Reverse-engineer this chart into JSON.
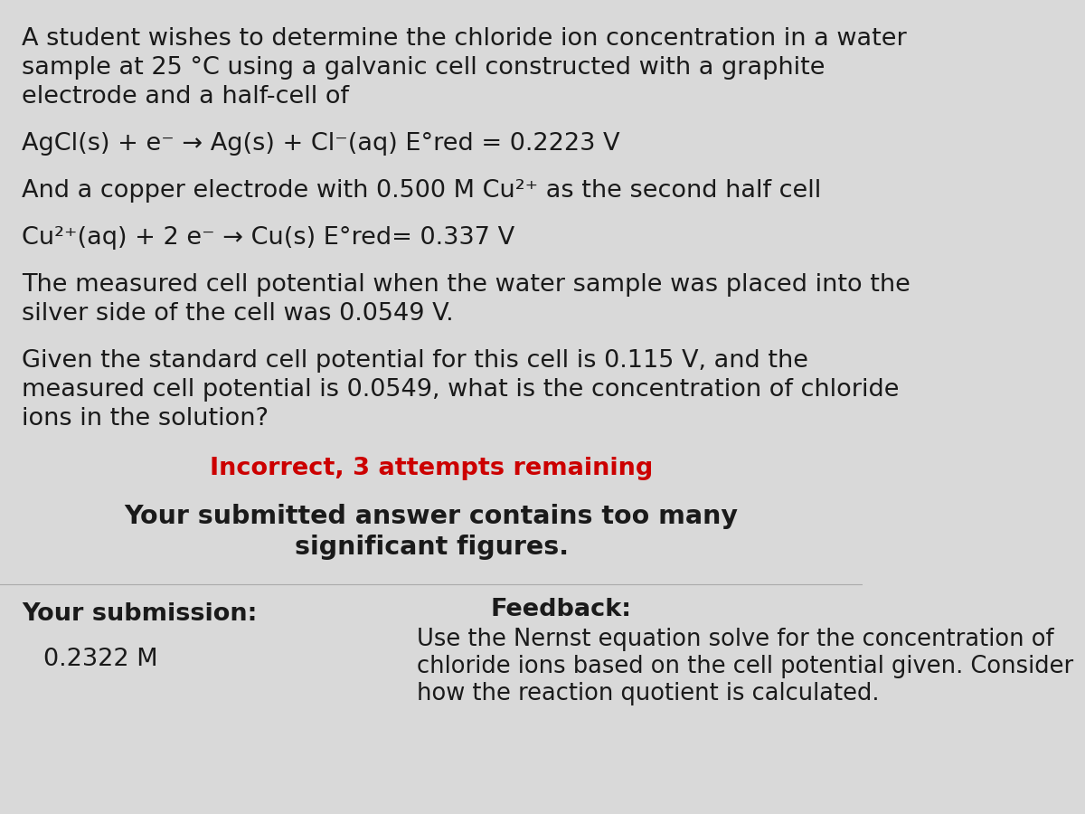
{
  "bg_color": "#d9d9d9",
  "text_color": "#1a1a1a",
  "red_color": "#cc0000",
  "line1": "A student wishes to determine the chloride ion concentration in a water",
  "line2": "sample at 25 °C using a galvanic cell constructed with a graphite",
  "line3": "electrode and a half-cell of",
  "eq1": "AgCl(s) + e⁻ → Ag(s) + Cl⁻(aq) E°red = 0.2223 V",
  "line4": "And a copper electrode with 0.500 M Cu²⁺ as the second half cell",
  "eq2": "Cu²⁺(aq) + 2 e⁻ → Cu(s) E°red= 0.337 V",
  "line5": "The measured cell potential when the water sample was placed into the",
  "line6": "silver side of the cell was 0.0549 V.",
  "line7": "Given the standard cell potential for this cell is 0.115 V, and the",
  "line8": "measured cell potential is 0.0549, what is the concentration of chloride",
  "line9": "ions in the solution?",
  "incorrect": "Incorrect, 3 attempts remaining",
  "feedback_title": "Your submitted answer contains too many",
  "feedback_title2": "significant figures.",
  "submission_label": "Your submission:",
  "submission_value": "0.2322 M",
  "feedback_header": "Feedback:",
  "feedback_line1": "Use the Nernst equation solve for the concentration of",
  "feedback_line2": "chloride ions based on the cell potential given. Consider",
  "feedback_line3": "how the reaction quotient is calculated."
}
